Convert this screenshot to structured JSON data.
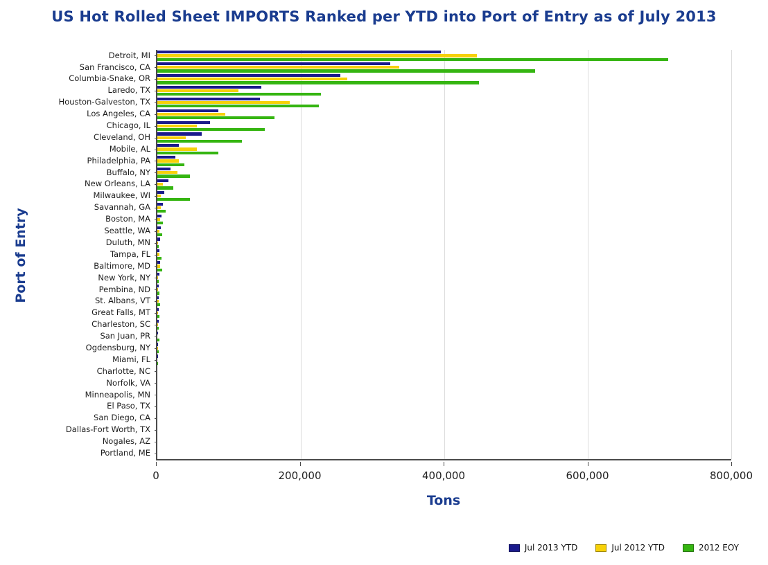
{
  "chart_data": {
    "type": "bar",
    "orientation": "horizontal",
    "title": "US Hot Rolled Sheet IMPORTS Ranked per YTD into Port of Entry as of July 2013",
    "xlabel": "Tons",
    "ylabel": "Port of Entry",
    "xlim": [
      0,
      800000
    ],
    "xticks": [
      0,
      200000,
      400000,
      600000,
      800000
    ],
    "xtick_labels": [
      "0",
      "200,000",
      "400,000",
      "600,000",
      "800,000"
    ],
    "grid": "vertical-light-gray",
    "legend_position": "bottom-right",
    "title_color": "#1a3c8f",
    "categories": [
      "Detroit, MI",
      "San Francisco, CA",
      "Columbia-Snake, OR",
      "Laredo, TX",
      "Houston-Galveston, TX",
      "Los Angeles, CA",
      "Chicago, IL",
      "Cleveland, OH",
      "Mobile, AL",
      "Philadelphia, PA",
      "Buffalo, NY",
      "New Orleans, LA",
      "Milwaukee, WI",
      "Savannah, GA",
      "Boston, MA",
      "Seattle, WA",
      "Duluth, MN",
      "Tampa, FL",
      "Baltimore, MD",
      "New York, NY",
      "Pembina, ND",
      "St. Albans, VT",
      "Great Falls, MT",
      "Charleston, SC",
      "San Juan, PR",
      "Ogdensburg, NY",
      "Miami, FL",
      "Charlotte, NC",
      "Norfolk, VA",
      "Minneapolis, MN",
      "El Paso, TX",
      "San Diego, CA",
      "Dallas-Fort Worth, TX",
      "Nogales, AZ",
      "Portland, ME"
    ],
    "series": [
      {
        "name": "Jul 2013 YTD",
        "color": "#1a1a8c",
        "values": [
          395000,
          325000,
          255000,
          145000,
          143000,
          85000,
          73000,
          62000,
          30000,
          25000,
          18000,
          15000,
          10000,
          8000,
          6000,
          5000,
          4000,
          2500,
          3500,
          3000,
          2000,
          2000,
          2000,
          1500,
          500,
          500,
          500,
          0,
          0,
          0,
          0,
          0,
          0,
          0,
          0
        ]
      },
      {
        "name": "Jul 2012 YTD",
        "color": "#f7d108",
        "values": [
          445000,
          337000,
          265000,
          113000,
          185000,
          95000,
          55000,
          40000,
          55000,
          30000,
          28000,
          8000,
          5000,
          5000,
          4000,
          3000,
          1000,
          3000,
          4000,
          1000,
          1000,
          1500,
          1000,
          500,
          0,
          500,
          0,
          0,
          0,
          0,
          0,
          0,
          0,
          0,
          0
        ]
      },
      {
        "name": "2012 EOY",
        "color": "#35b511",
        "values": [
          712000,
          527000,
          448000,
          228000,
          225000,
          163000,
          150000,
          118000,
          85000,
          38000,
          45000,
          22000,
          45000,
          12000,
          8000,
          7000,
          2000,
          6000,
          7000,
          2000,
          3000,
          4000,
          3000,
          2000,
          2500,
          2000,
          500,
          0,
          0,
          0,
          0,
          0,
          0,
          0,
          0
        ]
      }
    ]
  }
}
